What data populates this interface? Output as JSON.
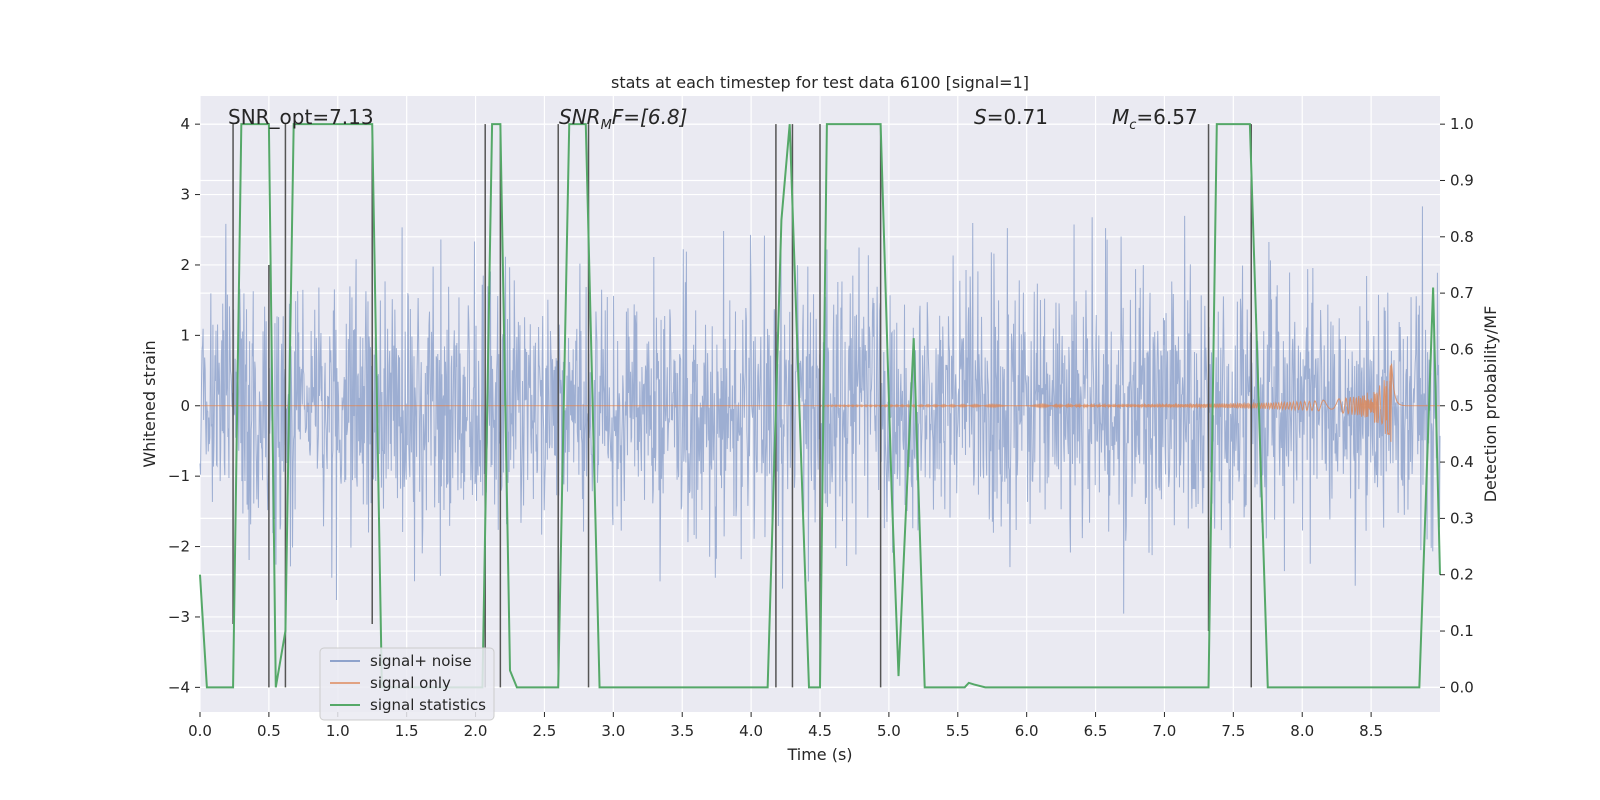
{
  "chart_data": {
    "type": "line",
    "title": "stats at each timestep for test data 6100 [signal=1]",
    "xlabel": "Time (s)",
    "ylabel_left": "Whitened strain",
    "ylabel_right": "Detection probability/MF",
    "xlim": [
      0,
      9
    ],
    "ylim_left": [
      -4.35,
      4.4
    ],
    "ylim_right": [
      0,
      1.0
    ],
    "x_ticks": [
      "0.0",
      "0.5",
      "1.0",
      "1.5",
      "2.0",
      "2.5",
      "3.0",
      "3.5",
      "4.0",
      "4.5",
      "5.0",
      "5.5",
      "6.0",
      "6.5",
      "7.0",
      "7.5",
      "8.0",
      "8.5"
    ],
    "y_ticks_left": [
      "−4",
      "−3",
      "−2",
      "−1",
      "0",
      "1",
      "2",
      "3",
      "4"
    ],
    "y_ticks_right": [
      "0.0",
      "0.1",
      "0.2",
      "0.3",
      "0.4",
      "0.5",
      "0.6",
      "0.7",
      "0.8",
      "0.9",
      "1.0"
    ],
    "annotations": {
      "snr_opt": "SNR_opt=7.13",
      "snr_mf_sym": "SNR",
      "snr_mf_sub": "M",
      "snr_mf_rest": "F=[6.8]",
      "s_sym": "S",
      "s_rest": "=0.71",
      "mc_sym": "M",
      "mc_sub": "c",
      "mc_rest": "=6.57"
    },
    "legend": {
      "position": "lower-left",
      "entries": [
        {
          "label": "signal+ noise",
          "color": "#8fa3cc"
        },
        {
          "label": "signal only",
          "color": "#e1a282"
        },
        {
          "label": "signal statistics",
          "color": "#55a868"
        }
      ]
    },
    "noise": {
      "color": "#8fa3cc",
      "sigma": 0.9,
      "amplitude_range": [
        -4,
        4
      ]
    },
    "signal_chirp": {
      "color": "#dd8452",
      "start": 4.5,
      "peak_time": 8.65,
      "end": 8.75,
      "peak_amplitude": 0.65
    },
    "vertical_lines": [
      0.24,
      0.5,
      0.62,
      1.25,
      2.07,
      2.18,
      2.6,
      2.82,
      4.18,
      4.3,
      4.5,
      4.94,
      7.32,
      7.63
    ],
    "vertical_line_ranges": [
      [
        -3.1,
        4.0
      ],
      [
        -4.0,
        2.0
      ],
      [
        -4.0,
        4.0
      ],
      [
        -3.1,
        4.0
      ],
      [
        -4.0,
        4.0
      ],
      [
        -4.0,
        4.0
      ],
      [
        -4.0,
        4.0
      ],
      [
        -4.0,
        4.0
      ],
      [
        -4.0,
        4.0
      ],
      [
        -4.0,
        4.0
      ],
      [
        -4.0,
        4.0
      ],
      [
        -4.0,
        4.0
      ],
      [
        -3.2,
        4.0
      ],
      [
        -4.0,
        4.0
      ]
    ],
    "stats_series": {
      "name": "signal statistics",
      "color": "#55a868",
      "x": [
        0.0,
        0.05,
        0.24,
        0.3,
        0.5,
        0.55,
        0.62,
        0.68,
        1.25,
        1.32,
        2.05,
        2.12,
        2.18,
        2.25,
        2.3,
        2.6,
        2.68,
        2.8,
        2.9,
        4.12,
        4.22,
        4.28,
        4.42,
        4.5,
        4.55,
        4.94,
        5.02,
        5.07,
        5.18,
        5.26,
        5.55,
        5.58,
        5.62,
        5.7,
        7.32,
        7.38,
        7.62,
        7.75,
        8.85,
        8.95,
        9.0
      ],
      "y": [
        0.2,
        0.0,
        0.0,
        1.0,
        1.0,
        0.0,
        0.1,
        1.0,
        1.0,
        0.0,
        0.0,
        1.0,
        1.0,
        0.03,
        0.0,
        0.0,
        1.0,
        1.0,
        0.0,
        0.0,
        0.83,
        1.0,
        0.0,
        0.0,
        1.0,
        1.0,
        0.35,
        0.02,
        0.62,
        0.0,
        0.0,
        0.008,
        0.005,
        0.0,
        0.0,
        1.0,
        1.0,
        0.0,
        0.0,
        0.71,
        0.2
      ]
    }
  }
}
